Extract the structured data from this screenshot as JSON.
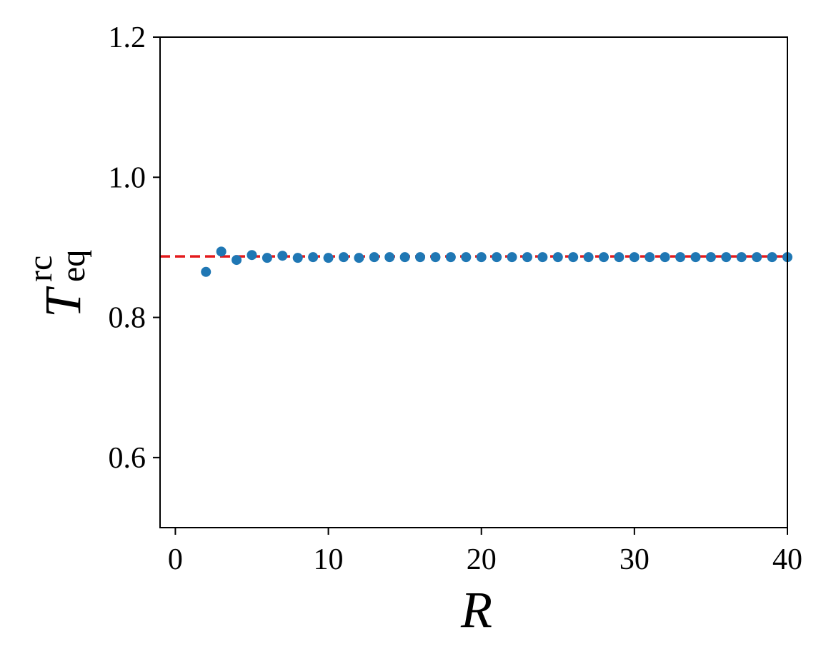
{
  "chart_data": {
    "type": "scatter",
    "xlabel": "R",
    "ylabel": "T",
    "ylabel_sup": "rc",
    "ylabel_sub": "eq",
    "x": [
      2,
      3,
      4,
      5,
      6,
      7,
      8,
      9,
      10,
      11,
      12,
      13,
      14,
      15,
      16,
      17,
      18,
      19,
      20,
      21,
      22,
      23,
      24,
      25,
      26,
      27,
      28,
      29,
      30,
      31,
      32,
      33,
      34,
      35,
      36,
      37,
      38,
      39,
      40
    ],
    "series": [
      {
        "color": "#1f77b4",
        "values": [
          0.865,
          0.894,
          0.882,
          0.889,
          0.885,
          0.888,
          0.885,
          0.886,
          0.885,
          0.886,
          0.885,
          0.886,
          0.886,
          0.886,
          0.886,
          0.886,
          0.886,
          0.886,
          0.886,
          0.886,
          0.886,
          0.886,
          0.886,
          0.886,
          0.886,
          0.886,
          0.886,
          0.886,
          0.886,
          0.886,
          0.886,
          0.886,
          0.886,
          0.886,
          0.886,
          0.886,
          0.886,
          0.886,
          0.886
        ]
      }
    ],
    "hline": {
      "value": 0.887,
      "color": "#e41a1c",
      "style": "dashed"
    },
    "xlim": [
      -1,
      40
    ],
    "ylim": [
      0.5,
      1.2
    ],
    "xticks": [
      0,
      10,
      20,
      30,
      40
    ],
    "yticks": [
      0.6,
      0.8,
      {
        "value": 1.0,
        "label": "1.0"
      },
      1.2
    ],
    "grid": false
  }
}
